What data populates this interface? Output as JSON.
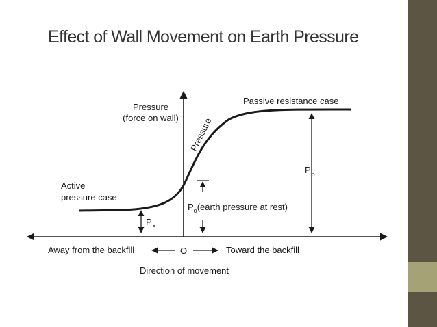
{
  "slide": {
    "title": "Effect of Wall Movement on Earth Pressure",
    "colors": {
      "sidebar": "#5c5543",
      "sidebar_block": "#a5a375",
      "background": "#ffffff",
      "ink": "#1a1a1a"
    }
  },
  "diagram": {
    "y_axis_label_line1": "Pressure",
    "y_axis_label_line2": "(force on wall)",
    "curve_label": "Pressure",
    "passive_label": "Passive resistance case",
    "active_label_line1": "Active",
    "active_label_line2": "pressure case",
    "pp_label": "P",
    "pp_sub": "p",
    "pa_label": "P",
    "pa_sub": "a",
    "p0_label": "P",
    "p0_sub": "o",
    "p0_desc": "(earth pressure at rest)",
    "left_label": "Away from the backfill",
    "right_label": "Toward the backfill",
    "origin_label": "O",
    "x_axis_title": "Direction of movement"
  }
}
